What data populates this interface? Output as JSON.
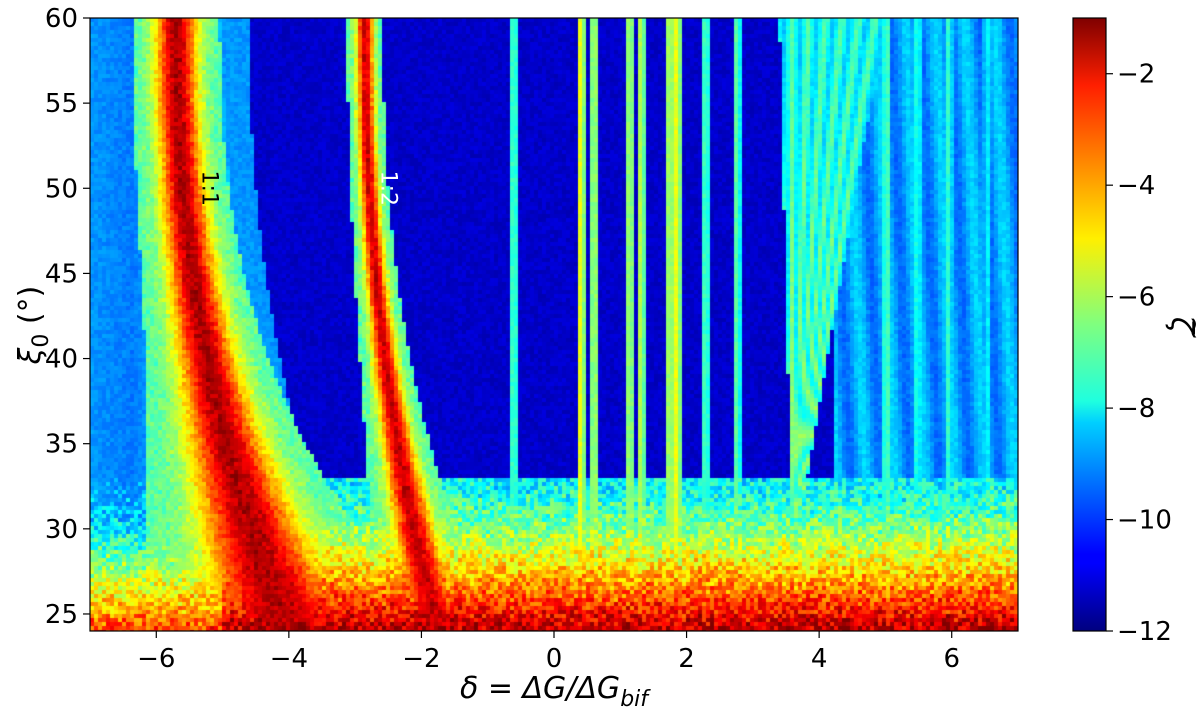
{
  "chart_data": {
    "type": "heatmap",
    "title": "",
    "xlabel": "δ = ΔG/ΔG_bif",
    "xlabel_parts": {
      "main": "δ = ΔG/ΔG",
      "sub": "bif"
    },
    "ylabel": "ξ0 (°)",
    "ylabel_parts": {
      "main": "ξ",
      "sub": "0",
      "rest": " (°)"
    },
    "colorbar_label": "ζ̃",
    "colorbar_label_parts": {
      "symbol": "ζ",
      "accent": "~"
    },
    "colormap": "jet",
    "xlim": [
      -7,
      7
    ],
    "ylim": [
      24,
      60
    ],
    "clim": [
      -12,
      -1
    ],
    "x_ticks": [
      -6,
      -4,
      -2,
      0,
      2,
      4,
      6
    ],
    "x_tick_labels": [
      "−6",
      "−4",
      "−2",
      "0",
      "2",
      "4",
      "6"
    ],
    "y_ticks": [
      25,
      30,
      35,
      40,
      45,
      50,
      55,
      60
    ],
    "y_tick_labels": [
      "25",
      "30",
      "35",
      "40",
      "45",
      "50",
      "55",
      "60"
    ],
    "colorbar_ticks": [
      -2,
      -4,
      -6,
      -8,
      -10,
      -12
    ],
    "colorbar_tick_labels": [
      "−2",
      "−4",
      "−6",
      "−8",
      "−10",
      "−12"
    ],
    "background_value": -11.2,
    "features": {
      "resonance_curves": [
        {
          "label": "1:1",
          "x_at_60": -5.7,
          "x_at_24": -4.0,
          "peak_value": -1.5,
          "width": 0.22,
          "label_x": -5.3,
          "label_y": 50
        },
        {
          "label": "1:2",
          "x_at_60": -2.85,
          "x_at_24": -1.75,
          "peak_value": -1.8,
          "width": 0.09,
          "label_x": -2.6,
          "label_y": 50
        }
      ],
      "vertical_streaks": [
        {
          "x": -0.6,
          "value": -8
        },
        {
          "x": 0.45,
          "value": -6.5
        },
        {
          "x": 0.6,
          "value": -7
        },
        {
          "x": 1.15,
          "value": -7
        },
        {
          "x": 1.35,
          "value": -7
        },
        {
          "x": 1.75,
          "value": -6.8
        },
        {
          "x": 1.9,
          "value": -6.5
        },
        {
          "x": 2.3,
          "value": -8
        },
        {
          "x": 2.8,
          "value": -8
        },
        {
          "x": 5.0,
          "value": -8
        },
        {
          "x": 5.5,
          "value": -8.5
        },
        {
          "x": 6.0,
          "value": -8.5
        },
        {
          "x": 6.5,
          "value": -9
        }
      ],
      "fan_region": {
        "x_center_at_30": 3.6,
        "x_left_at_60": 3.4,
        "x_right_at_60": 5.0,
        "value": -6
      },
      "bottom_band": {
        "y_top": 33,
        "y_hot": 26,
        "value_at_bottom": -1.5
      },
      "left_halo": {
        "x_min": -7,
        "x_max": -5.9,
        "y_min": 31,
        "y_max": 60,
        "value": -9
      }
    }
  }
}
